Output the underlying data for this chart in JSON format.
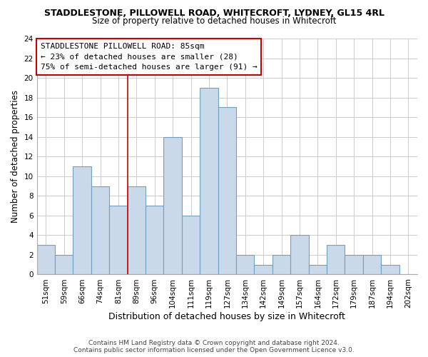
{
  "title": "STADDLESTONE, PILLOWELL ROAD, WHITECROFT, LYDNEY, GL15 4RL",
  "subtitle": "Size of property relative to detached houses in Whitecroft",
  "xlabel": "Distribution of detached houses by size in Whitecroft",
  "ylabel": "Number of detached properties",
  "bin_labels": [
    "51sqm",
    "59sqm",
    "66sqm",
    "74sqm",
    "81sqm",
    "89sqm",
    "96sqm",
    "104sqm",
    "111sqm",
    "119sqm",
    "127sqm",
    "134sqm",
    "142sqm",
    "149sqm",
    "157sqm",
    "164sqm",
    "172sqm",
    "179sqm",
    "187sqm",
    "194sqm",
    "202sqm"
  ],
  "bin_values": [
    3,
    2,
    11,
    9,
    7,
    9,
    7,
    14,
    6,
    19,
    17,
    2,
    1,
    2,
    4,
    1,
    3,
    2,
    2,
    1,
    0
  ],
  "bar_color": "#c9d9ea",
  "bar_edge_color": "#6ea0c0",
  "grid_color": "#cccccc",
  "background_color": "#ffffff",
  "ylim": [
    0,
    24
  ],
  "yticks": [
    0,
    2,
    4,
    6,
    8,
    10,
    12,
    14,
    16,
    18,
    20,
    22,
    24
  ],
  "annotation_box_text1": "STADDLESTONE PILLOWELL ROAD: 85sqm",
  "annotation_box_text2": "← 23% of detached houses are smaller (28)",
  "annotation_box_text3": "75% of semi-detached houses are larger (91) →",
  "footer_line1": "Contains HM Land Registry data © Crown copyright and database right 2024.",
  "footer_line2": "Contains public sector information licensed under the Open Government Licence v3.0.",
  "red_line_color": "#cc0000",
  "annotation_box_edge_color": "#cc0000",
  "title_fontsize": 9,
  "subtitle_fontsize": 8.5,
  "ylabel_fontsize": 8.5,
  "xlabel_fontsize": 9,
  "tick_fontsize": 7.5,
  "annotation_fontsize": 8,
  "footer_fontsize": 6.5
}
